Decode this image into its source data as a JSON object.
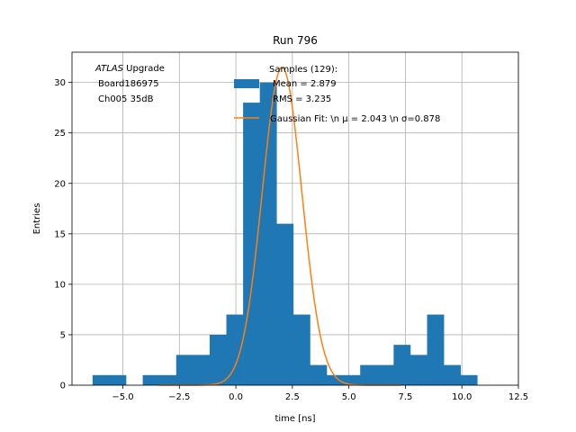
{
  "chart_data": {
    "type": "bar",
    "title": "Run 796",
    "xlabel": "time [ns]",
    "ylabel": "Entries",
    "xlim": [
      -7.25,
      12.5
    ],
    "ylim": [
      0,
      33
    ],
    "xticks": [
      -5.0,
      -2.5,
      0.0,
      2.5,
      5.0,
      7.5,
      10.0,
      12.5
    ],
    "xtick_labels": [
      "−5.0",
      "−2.5",
      "0.0",
      "2.5",
      "5.0",
      "7.5",
      "10.0",
      "12.5"
    ],
    "yticks": [
      0,
      5,
      10,
      15,
      20,
      25,
      30
    ],
    "ytick_labels": [
      "0",
      "5",
      "10",
      "15",
      "20",
      "25",
      "30"
    ],
    "grid": true,
    "legend_position": "top-right",
    "annotation": {
      "lines": [
        {
          "italic": "ATLAS",
          "text": " Upgrade"
        },
        {
          "italic": "",
          "text": "Board186975"
        },
        {
          "italic": "",
          "text": "Ch005 35dB"
        }
      ]
    },
    "histogram": {
      "name": "Samples (129):",
      "stats": [
        "Mean = 2.879",
        "RMS = 3.235"
      ],
      "color": "#1f77b4",
      "bin_edges": [
        -6.34,
        -5.6,
        -4.86,
        -4.12,
        -3.38,
        -2.64,
        -1.9,
        -1.16,
        -0.42,
        0.32,
        1.06,
        1.8,
        2.54,
        3.28,
        4.02,
        4.76,
        5.5,
        6.24,
        6.98,
        7.72,
        8.46,
        9.2,
        9.94,
        10.68,
        11.42
      ],
      "counts": [
        1,
        1,
        0,
        1,
        1,
        3,
        3,
        5,
        7,
        28,
        30,
        16,
        7,
        2,
        1,
        1,
        2,
        2,
        4,
        3,
        7,
        2,
        1,
        0
      ]
    },
    "fit": {
      "name": "Gaussian Fit: \\n μ = 2.043 \\n σ=0.878",
      "type": "gaussian",
      "mu": 2.043,
      "sigma": 0.878,
      "amplitude": 31.5,
      "x_range": [
        -3.4,
        7.3
      ],
      "color": "#ff7f0e"
    }
  }
}
